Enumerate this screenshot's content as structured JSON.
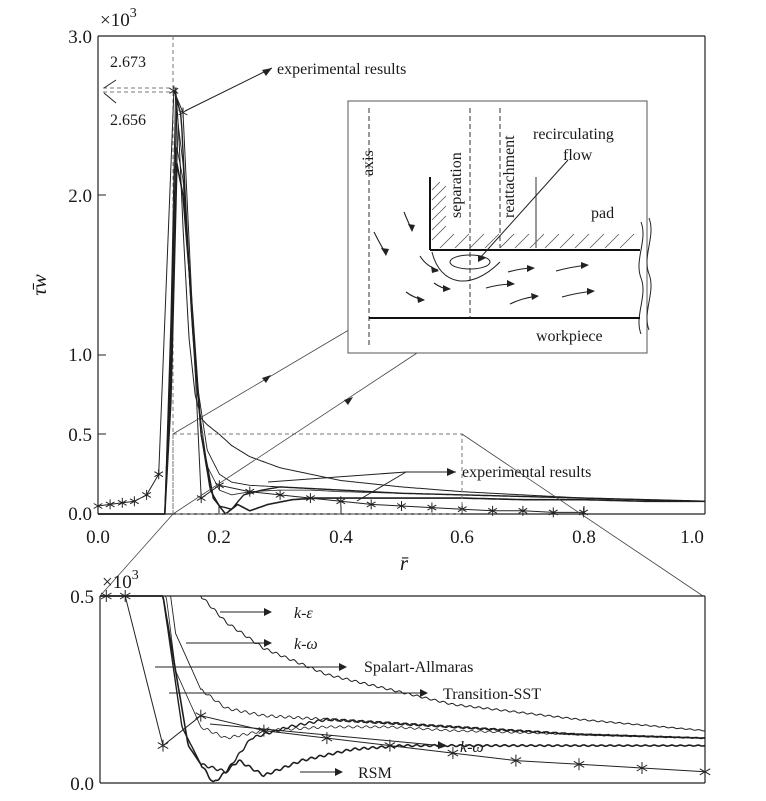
{
  "chart_data": [
    {
      "type": "line",
      "panel": "main",
      "xlabel": "r̄",
      "ylabel": "τ̄w",
      "y_multiplier": "×10",
      "y_multiplier_exp": "3",
      "xlim": [
        0.0,
        1.0
      ],
      "ylim": [
        0.0,
        3.0
      ],
      "xticks": [
        "0.0",
        "0.2",
        "0.4",
        "0.6",
        "0.8",
        "1.0"
      ],
      "yticks": [
        "0.0",
        "0.5",
        "1.0",
        "2.0",
        "3.0"
      ],
      "peak_labels": [
        "2.673",
        "2.656"
      ],
      "annotations": [
        "experimental results",
        "experimental results"
      ],
      "series": [
        {
          "name": "k-ε",
          "x": [
            0.0,
            0.11,
            0.12,
            0.128,
            0.133,
            0.14,
            0.15,
            0.16,
            0.17,
            0.18,
            0.2,
            0.22,
            0.25,
            0.3,
            0.35,
            0.4,
            0.5,
            0.6,
            0.7,
            0.8,
            0.9,
            1.0
          ],
          "y": [
            0,
            0,
            1.2,
            2.673,
            2.4,
            1.8,
            1.1,
            0.75,
            0.6,
            0.56,
            0.5,
            0.43,
            0.36,
            0.29,
            0.25,
            0.21,
            0.17,
            0.14,
            0.12,
            0.1,
            0.09,
            0.08
          ]
        },
        {
          "name": "k-ω",
          "x": [
            0.0,
            0.11,
            0.12,
            0.13,
            0.137,
            0.145,
            0.155,
            0.17,
            0.185,
            0.2,
            0.22,
            0.24,
            0.27,
            0.3,
            0.35,
            0.4,
            0.5,
            0.6,
            0.7,
            0.8,
            0.9,
            1.0
          ],
          "y": [
            0,
            0,
            1.0,
            2.6,
            2.5,
            1.9,
            1.2,
            0.5,
            0.15,
            0.05,
            0.03,
            0.12,
            0.15,
            0.17,
            0.16,
            0.15,
            0.13,
            0.12,
            0.11,
            0.1,
            0.09,
            0.08
          ]
        },
        {
          "name": "Spalart-Allmaras",
          "x": [
            0.0,
            0.11,
            0.12,
            0.132,
            0.14,
            0.15,
            0.16,
            0.18,
            0.2,
            0.22,
            0.25,
            0.3,
            0.35,
            0.4,
            0.5,
            0.6,
            0.7,
            0.8,
            0.9,
            1.0
          ],
          "y": [
            0,
            0,
            0.9,
            2.45,
            2.2,
            1.5,
            0.9,
            0.4,
            0.25,
            0.2,
            0.18,
            0.17,
            0.16,
            0.15,
            0.13,
            0.12,
            0.11,
            0.1,
            0.09,
            0.08
          ]
        },
        {
          "name": "Transition-SST",
          "x": [
            0.0,
            0.11,
            0.12,
            0.13,
            0.14,
            0.15,
            0.165,
            0.18,
            0.2,
            0.22,
            0.25,
            0.3,
            0.35,
            0.4,
            0.5,
            0.6,
            0.7,
            0.8,
            0.9,
            1.0
          ],
          "y": [
            0,
            0,
            0.8,
            2.3,
            2.1,
            1.5,
            0.7,
            0.3,
            0.15,
            0.12,
            0.14,
            0.15,
            0.15,
            0.14,
            0.13,
            0.12,
            0.11,
            0.1,
            0.09,
            0.08
          ]
        },
        {
          "name": "RSM",
          "x": [
            0.0,
            0.11,
            0.12,
            0.13,
            0.14,
            0.155,
            0.17,
            0.19,
            0.21,
            0.23,
            0.25,
            0.28,
            0.32,
            0.36,
            0.4,
            0.5,
            0.6,
            0.7,
            0.8,
            0.9,
            1.0
          ],
          "y": [
            0,
            0,
            0.7,
            2.2,
            2.0,
            1.3,
            0.5,
            0.1,
            0.0,
            0.06,
            0.02,
            0.06,
            0.09,
            0.1,
            0.1,
            0.1,
            0.1,
            0.09,
            0.09,
            0.08,
            0.08
          ]
        },
        {
          "name": "experimental results",
          "x": [
            0.0,
            0.02,
            0.04,
            0.06,
            0.08,
            0.1,
            0.125,
            0.14,
            0.17,
            0.2,
            0.25,
            0.3,
            0.35,
            0.4,
            0.45,
            0.5,
            0.55,
            0.6,
            0.65,
            0.7,
            0.75,
            0.8
          ],
          "y": [
            0.05,
            0.06,
            0.07,
            0.08,
            0.12,
            0.25,
            2.656,
            2.52,
            0.1,
            0.18,
            0.14,
            0.12,
            0.1,
            0.08,
            0.06,
            0.05,
            0.04,
            0.03,
            0.02,
            0.02,
            0.01,
            0.01
          ]
        }
      ]
    },
    {
      "type": "line",
      "panel": "zoom",
      "y_multiplier": "×10",
      "y_multiplier_exp": "3",
      "xlim": [
        0.12,
        0.6
      ],
      "ylim": [
        0.0,
        0.5
      ],
      "yticks": [
        "0.0",
        "0.5"
      ],
      "legend": [
        "k-ε",
        "k-ω",
        "Spalart-Allmaras",
        "Transition-SST",
        "k-ω",
        "RSM"
      ]
    }
  ],
  "inset": {
    "labels": {
      "axis": "axis",
      "separation": "separation",
      "reattachment": "reattachment",
      "recirculating": "recirculating",
      "flow": "flow",
      "pad": "pad",
      "workpiece": "workpiece"
    }
  }
}
